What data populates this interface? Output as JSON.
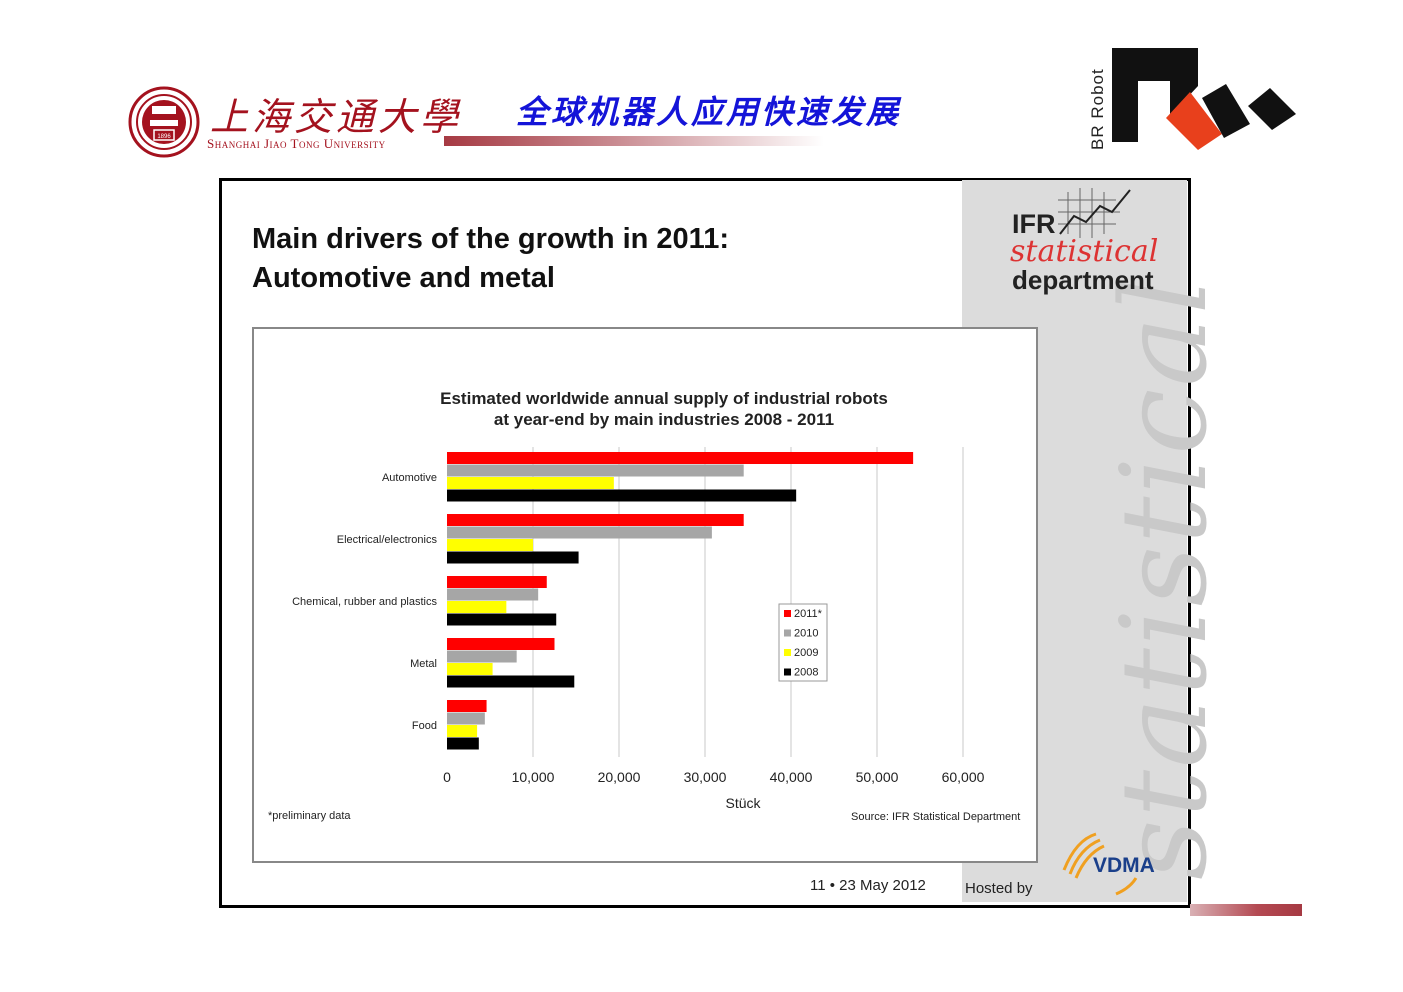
{
  "header": {
    "university_cn": "上海交通大學",
    "university_en": "Shanghai Jiao Tong University",
    "seal_year": "1896",
    "title_cn": "全球机器人应用快速发展",
    "brand_vertical": "BR Robot"
  },
  "slide": {
    "heading_line1": "Main drivers of the growth in 2011:",
    "heading_line2": "Automotive and metal",
    "ifr_logo": {
      "ifr": "IFR",
      "statistical": "statistical",
      "department": "department"
    },
    "watermark": "statistical",
    "footer_page": "11 •  23 May 2012",
    "footer_hosted": "Hosted by",
    "vdma": "VDMA"
  },
  "chart_data": {
    "type": "bar",
    "orientation": "horizontal",
    "title": "Estimated worldwide annual supply of industrial robots",
    "subtitle": "at year-end by main industries 2008 - 2011",
    "xlabel": "Stück",
    "ylabel": "",
    "xlim": [
      0,
      60000
    ],
    "x_ticks": [
      "0",
      "10,000",
      "20,000",
      "30,000",
      "40,000",
      "50,000",
      "60,000"
    ],
    "grid": "vertical",
    "legend_position": "center-right",
    "categories": [
      "Automotive",
      "Electrical/electronics",
      "Chemical, rubber and plastics",
      "Metal",
      "Food"
    ],
    "series": [
      {
        "name": "2011*",
        "color": "#ff0000",
        "values": [
          54200,
          34500,
          11600,
          12500,
          4600
        ]
      },
      {
        "name": "2010",
        "color": "#a6a6a6",
        "values": [
          34500,
          30800,
          10600,
          8100,
          4400
        ]
      },
      {
        "name": "2009",
        "color": "#ffff00",
        "values": [
          19400,
          10000,
          6900,
          5300,
          3500
        ]
      },
      {
        "name": "2008",
        "color": "#000000",
        "values": [
          40600,
          15300,
          12700,
          14800,
          3700
        ]
      }
    ],
    "note": "*preliminary data",
    "source": "Source: IFR Statistical Department"
  }
}
